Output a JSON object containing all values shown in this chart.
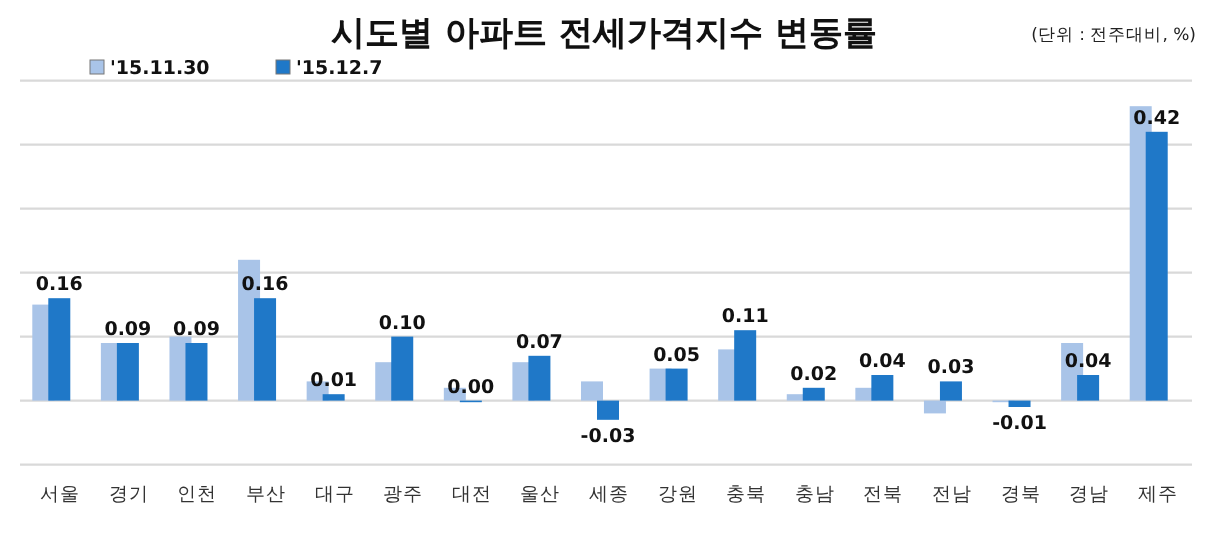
{
  "chart_data": {
    "type": "bar",
    "title": "시도별 아파트 전세가격지수 변동률",
    "annotations": [
      "(단위 : 전주대비, %)"
    ],
    "categories": [
      "서울",
      "경기",
      "인천",
      "부산",
      "대구",
      "광주",
      "대전",
      "울산",
      "세종",
      "강원",
      "충북",
      "충남",
      "전북",
      "전남",
      "경북",
      "경남",
      "제주"
    ],
    "series": [
      {
        "name": "'15.11.30",
        "color": "#a9c4e8",
        "values": [
          0.15,
          0.09,
          0.1,
          0.22,
          0.03,
          0.06,
          0.02,
          0.06,
          0.03,
          0.05,
          0.08,
          0.01,
          0.02,
          -0.02,
          0.0,
          0.09,
          0.46
        ]
      },
      {
        "name": "'15.12.7",
        "color": "#1f78c8",
        "values": [
          0.16,
          0.09,
          0.09,
          0.16,
          0.01,
          0.1,
          0.0,
          0.07,
          -0.03,
          0.05,
          0.11,
          0.02,
          0.04,
          0.03,
          -0.01,
          0.04,
          0.42
        ],
        "value_labels": [
          "0.16",
          "0.09",
          "0.09",
          "0.16",
          "0.01",
          "0.10",
          "0.00",
          "0.07",
          "-0.03",
          "0.05",
          "0.11",
          "0.02",
          "0.04",
          "0.03",
          "-0.01",
          "0.04",
          "0.42"
        ]
      }
    ],
    "ylim": [
      -0.1,
      0.5
    ],
    "yticks": [
      {
        "value": -0.1,
        "label": null
      },
      {
        "value": 0,
        "label": null
      },
      {
        "value": 0.1,
        "label": null
      },
      {
        "value": 0.2,
        "label": null
      },
      {
        "value": 0.3,
        "label": null
      },
      {
        "value": 0.4,
        "label": null
      },
      {
        "value": 0.5,
        "label": null
      }
    ],
    "grid": "y",
    "legend": "top left",
    "tick_labels": "x"
  }
}
